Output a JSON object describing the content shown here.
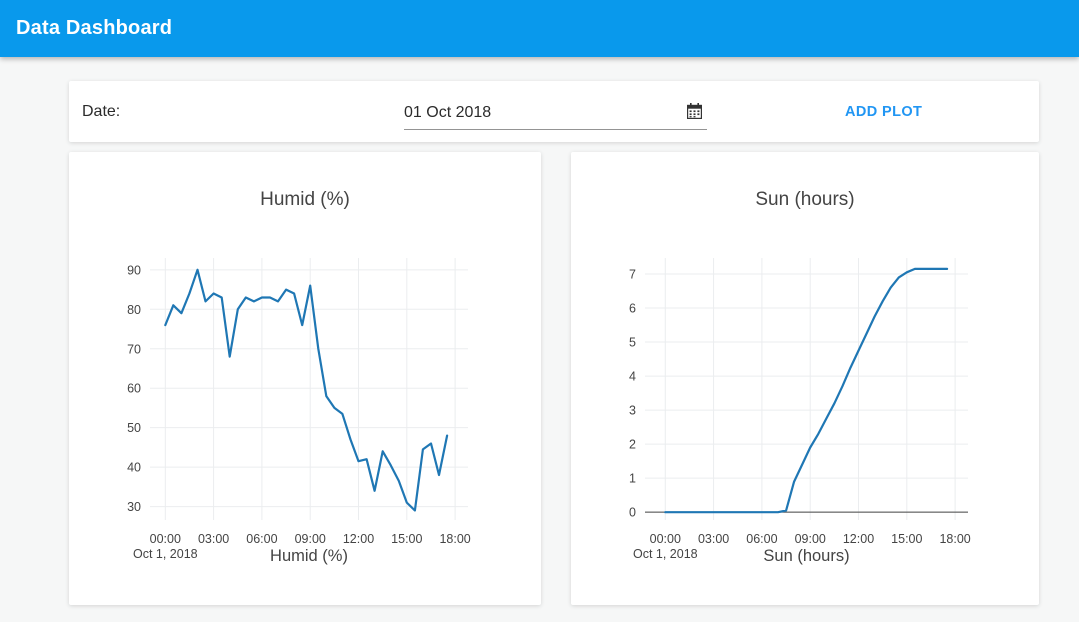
{
  "header": {
    "title": "Data Dashboard"
  },
  "colors": {
    "header_bg": "#0999EC",
    "accent": "#2196F3",
    "line": "#1F77B4",
    "grid": "#EBEDEF",
    "zeroline": "#444444",
    "chart_text": "#444444"
  },
  "controls": {
    "date_label": "Date:",
    "date_value": "01 Oct 2018",
    "calendar_icon": "calendar-icon",
    "add_plot_label": "ADD PLOT"
  },
  "chart_data": [
    {
      "type": "line",
      "title": "Humid (%)",
      "xlabel": "Humid (%)",
      "x_axis_date_label": "Oct 1, 2018",
      "x_tick_hours": [
        0,
        3,
        6,
        9,
        12,
        15,
        18
      ],
      "x_tick_labels": [
        "00:00",
        "03:00",
        "06:00",
        "09:00",
        "12:00",
        "15:00",
        "18:00"
      ],
      "y_ticks": [
        30,
        40,
        50,
        60,
        70,
        80,
        90
      ],
      "xlim_hours": [
        -0.95,
        18.8
      ],
      "ylim": [
        26.6,
        93.0
      ],
      "grid": true,
      "zeroline": false,
      "legend": "none",
      "line_color": "#1F77B4",
      "x_hours": [
        0,
        0.5,
        1,
        1.5,
        2,
        2.5,
        3,
        3.5,
        4,
        4.5,
        5,
        5.5,
        6,
        6.5,
        7,
        7.5,
        8,
        8.5,
        9,
        9.5,
        10,
        10.5,
        11,
        11.5,
        12,
        12.5,
        13,
        13.5,
        14,
        14.5,
        15,
        15.5,
        16,
        16.5,
        17,
        17.5
      ],
      "values": [
        76,
        81,
        79,
        84,
        90,
        82,
        84,
        83,
        68,
        80,
        83,
        82,
        83,
        83,
        82,
        85,
        84,
        76,
        86,
        70,
        58,
        55,
        53.5,
        47,
        41.5,
        42,
        34,
        44,
        40.5,
        36.5,
        31,
        29,
        44.5,
        46,
        38,
        48
      ]
    },
    {
      "type": "line",
      "title": "Sun (hours)",
      "xlabel": "Sun (hours)",
      "x_axis_date_label": "Oct 1, 2018",
      "x_tick_hours": [
        0,
        3,
        6,
        9,
        12,
        15,
        18
      ],
      "x_tick_labels": [
        "00:00",
        "03:00",
        "06:00",
        "09:00",
        "12:00",
        "15:00",
        "18:00"
      ],
      "y_ticks": [
        0,
        1,
        2,
        3,
        4,
        5,
        6,
        7
      ],
      "xlim_hours": [
        -1.26,
        18.8
      ],
      "ylim": [
        -0.23,
        7.47
      ],
      "grid": true,
      "zeroline": true,
      "legend": "none",
      "line_color": "#1F77B4",
      "x_hours": [
        0,
        0.5,
        1,
        1.5,
        2,
        2.5,
        3,
        3.5,
        4,
        4.5,
        5,
        5.5,
        6,
        6.5,
        7,
        7.5,
        8,
        8.5,
        9,
        9.5,
        10,
        10.5,
        11,
        11.5,
        12,
        12.5,
        13,
        13.5,
        14,
        14.5,
        15,
        15.5,
        16,
        16.5,
        17,
        17.5
      ],
      "values": [
        0,
        0,
        0,
        0,
        0,
        0,
        0,
        0,
        0,
        0,
        0,
        0,
        0,
        0,
        0,
        0.05,
        0.9,
        1.4,
        1.9,
        2.3,
        2.75,
        3.2,
        3.7,
        4.25,
        4.75,
        5.25,
        5.75,
        6.2,
        6.6,
        6.9,
        7.05,
        7.15,
        7.15,
        7.15,
        7.15,
        7.15
      ]
    }
  ]
}
